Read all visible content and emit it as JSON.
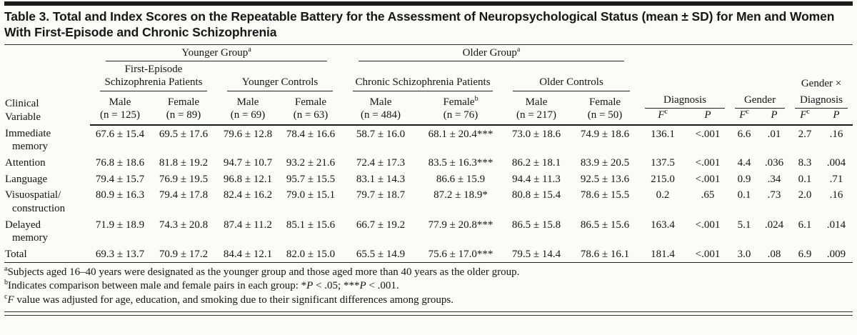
{
  "title": "Table 3. Total and Index Scores on the Repeatable Battery for the Assessment of Neuropsychological Status (mean ± SD) for Men and Women With First-Episode and Chronic Schizophrenia",
  "colors": {
    "background": "#fbfbf8",
    "text": "#141414",
    "rule": "#1c1c1c"
  },
  "header": {
    "row_label_line1": "Clinical",
    "row_label_line2": "Variable",
    "groups": [
      {
        "label": "Younger Group",
        "sup": "a"
      },
      {
        "label": "Older Group",
        "sup": "a"
      }
    ],
    "subgroups": [
      "First-Episode Schizophrenia Patients",
      "Younger Controls",
      "Chronic Schizophrenia Patients",
      "Older Controls"
    ],
    "stat_groups": [
      {
        "line1": "",
        "line2": "Diagnosis"
      },
      {
        "line1": "",
        "line2": "Gender"
      },
      {
        "line1": "Gender ×",
        "line2": "Diagnosis"
      }
    ],
    "subject_columns": [
      {
        "sex": "Male",
        "n": "(n = 125)"
      },
      {
        "sex": "Female",
        "n": "(n = 89)"
      },
      {
        "sex": "Male",
        "n": "(n = 69)"
      },
      {
        "sex": "Female",
        "n": "(n = 63)"
      },
      {
        "sex": "Male",
        "n": "(n = 484)"
      },
      {
        "sex": "Female",
        "sup": "b",
        "n": "(n = 76)"
      },
      {
        "sex": "Male",
        "n": "(n = 217)"
      },
      {
        "sex": "Female",
        "n": "(n = 50)"
      }
    ],
    "stat_columns": [
      {
        "label": "F",
        "sup": "c"
      },
      {
        "label": "P"
      },
      {
        "label": "F",
        "sup": "c"
      },
      {
        "label": "P"
      },
      {
        "label": "F",
        "sup": "c"
      },
      {
        "label": "P"
      }
    ]
  },
  "rows": [
    {
      "label": "Immediate memory",
      "values": [
        "67.6 ± 15.4",
        "69.5 ± 17.6",
        "79.6 ± 12.8",
        "78.4 ± 16.6",
        "58.7 ± 16.0",
        "68.1 ± 20.4***",
        "73.0 ± 18.6",
        "74.9 ± 18.6",
        "136.1",
        "<.001",
        "6.6",
        ".01",
        "2.7",
        ".16"
      ]
    },
    {
      "label": "Attention",
      "values": [
        "76.8 ± 18.6",
        "81.8 ± 19.2",
        "94.7 ± 10.7",
        "93.2 ± 21.6",
        "72.4 ± 17.3",
        "83.5 ± 16.3***",
        "86.2 ± 18.1",
        "83.9 ± 20.5",
        "137.5",
        "<.001",
        "4.4",
        ".036",
        "8.3",
        ".004"
      ]
    },
    {
      "label": "Language",
      "values": [
        "79.4 ± 15.7",
        "76.9 ± 19.5",
        "96.8 ± 12.1",
        "95.7 ± 15.5",
        "83.1 ± 14.3",
        "86.6 ± 15.9",
        "94.4 ± 11.3",
        "92.5 ± 13.6",
        "215.0",
        "<.001",
        "0.9",
        ".34",
        "0.1",
        ".71"
      ]
    },
    {
      "label": "Visuospatial/ construction",
      "values": [
        "80.9 ± 16.3",
        "79.4 ± 17.8",
        "82.4 ± 16.2",
        "79.0 ± 15.1",
        "79.7 ± 18.7",
        "87.2 ± 18.9*",
        "80.8 ± 15.4",
        "78.6 ± 15.5",
        "0.2",
        ".65",
        "0.1",
        ".73",
        "2.0",
        ".16"
      ]
    },
    {
      "label": "Delayed memory",
      "values": [
        "71.9 ± 18.9",
        "74.3 ± 20.8",
        "87.4 ± 11.2",
        "85.1 ± 15.6",
        "66.7 ± 19.2",
        "77.9 ± 20.8***",
        "86.5 ± 15.8",
        "86.5 ± 15.6",
        "163.4",
        "<.001",
        "5.1",
        ".024",
        "6.1",
        ".014"
      ]
    },
    {
      "label": "Total",
      "values": [
        "69.3 ± 13.7",
        "70.9 ± 17.2",
        "84.4 ± 12.1",
        "82.0 ± 15.0",
        "65.5 ± 14.9",
        "75.6 ± 17.0***",
        "79.5 ± 14.4",
        "78.6 ± 16.1",
        "181.4",
        "<.001",
        "3.0",
        ".08",
        "6.9",
        ".009"
      ]
    }
  ],
  "footnotes": {
    "a": {
      "sup": "a",
      "text": "Subjects aged 16–40 years were designated as the younger group and those aged more than 40 years as the older group."
    },
    "b": {
      "sup": "b",
      "pre": "Indicates comparison between male and female pairs in each group: *",
      "i1": "P",
      "mid": " < .05; ***",
      "i2": "P",
      "end": " < .001."
    },
    "c": {
      "sup": "c",
      "i1": "F",
      "text": " value was adjusted for age, education, and smoking due to their significant differences among groups."
    }
  }
}
